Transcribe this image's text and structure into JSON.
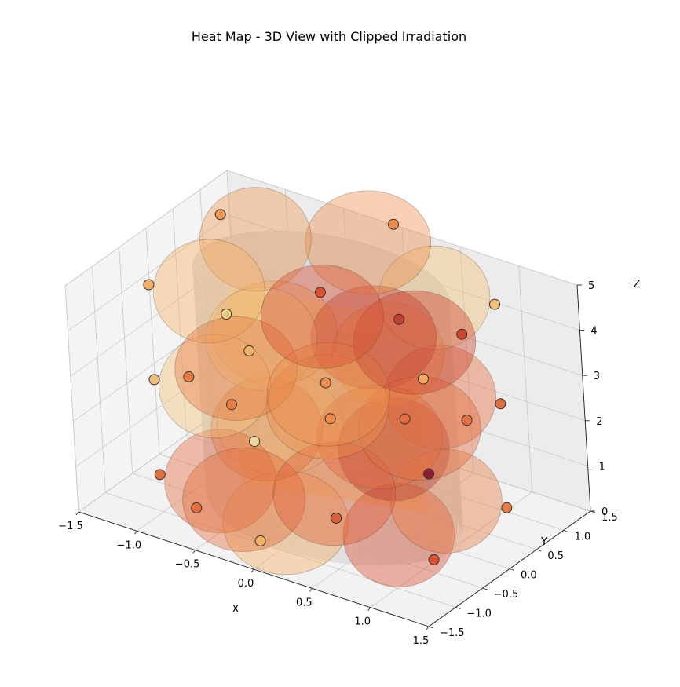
{
  "chart_data": {
    "type": "3d-scatter-surface",
    "title": "Heat Map - 3D View with Clipped Irradiation",
    "xlabel": "X",
    "ylabel": "Y",
    "zlabel": "Z",
    "xlim": [
      -1.5,
      1.5
    ],
    "ylim": [
      -1.5,
      1.5
    ],
    "zlim": [
      0,
      5
    ],
    "x_ticks": [
      "−1.5",
      "−1.0",
      "−0.5",
      "0.0",
      "0.5",
      "1.0",
      "1.5"
    ],
    "y_ticks": [
      "−1.5",
      "−1.0",
      "−0.5",
      "0.0",
      "0.5",
      "1.0",
      "1.5"
    ],
    "z_ticks": [
      "0",
      "1",
      "2",
      "3",
      "4",
      "5"
    ],
    "grid": true,
    "cylinder": {
      "radius": 1.0,
      "z_min": 0,
      "z_max": 5
    },
    "points": [
      {
        "x": 0.0,
        "y": -1.0,
        "z": 0.5,
        "heat": 0.3
      },
      {
        "x": 0.0,
        "y": -1.0,
        "z": 2.7,
        "heat": 0.02
      },
      {
        "x": 0.0,
        "y": -1.0,
        "z": 4.7,
        "heat": 0.3
      },
      {
        "x": 0.87,
        "y": -0.5,
        "z": 0.5,
        "heat": 0.65
      },
      {
        "x": 0.87,
        "y": -0.5,
        "z": 2.4,
        "heat": 0.95
      },
      {
        "x": 0.87,
        "y": -0.5,
        "z": 4.5,
        "heat": 0.35
      },
      {
        "x": 0.87,
        "y": 0.5,
        "z": 0.5,
        "heat": 0.5
      },
      {
        "x": 0.87,
        "y": 0.5,
        "z": 2.8,
        "heat": 0.55
      },
      {
        "x": 0.87,
        "y": 0.5,
        "z": 5.0,
        "heat": 0.2
      },
      {
        "x": 0.0,
        "y": 1.0,
        "z": 0.9,
        "heat": 0.55
      },
      {
        "x": 0.0,
        "y": 1.0,
        "z": 3.1,
        "heat": 0.75
      },
      {
        "x": 0.0,
        "y": 1.0,
        "z": 5.2,
        "heat": 0.45
      },
      {
        "x": -0.87,
        "y": 0.5,
        "z": 0.8,
        "heat": 0.5
      },
      {
        "x": -0.87,
        "y": 0.5,
        "z": 2.8,
        "heat": 0.1
      },
      {
        "x": -0.87,
        "y": 0.5,
        "z": 5.0,
        "heat": 0.4
      },
      {
        "x": -0.87,
        "y": -0.5,
        "z": 0.4,
        "heat": 0.55
      },
      {
        "x": -0.87,
        "y": -0.5,
        "z": 2.5,
        "heat": 0.2
      },
      {
        "x": -0.87,
        "y": -0.5,
        "z": 4.6,
        "heat": 0.3
      },
      {
        "x": -0.45,
        "y": -0.9,
        "z": 0.6,
        "heat": 0.55
      },
      {
        "x": 0.45,
        "y": -0.9,
        "z": 1.4,
        "heat": 0.6
      },
      {
        "x": 0.45,
        "y": 0.9,
        "z": 1.5,
        "heat": 0.55
      },
      {
        "x": -0.45,
        "y": 0.9,
        "z": 1.3,
        "heat": 0.45
      },
      {
        "x": -0.45,
        "y": -0.9,
        "z": 3.5,
        "heat": 0.5
      },
      {
        "x": 0.45,
        "y": -0.9,
        "z": 3.6,
        "heat": 0.45
      },
      {
        "x": 0.45,
        "y": 0.9,
        "z": 3.4,
        "heat": 0.7
      },
      {
        "x": -0.45,
        "y": 0.9,
        "z": 3.3,
        "heat": 0.65
      }
    ]
  }
}
